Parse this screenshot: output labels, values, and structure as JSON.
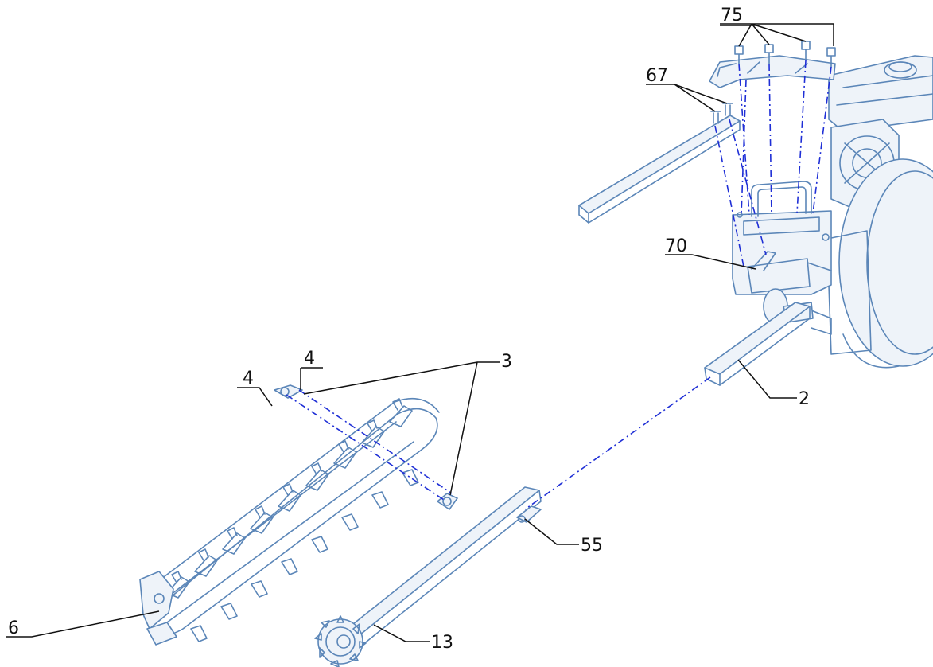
{
  "callouts": [
    {
      "id": "c75",
      "text": "75"
    },
    {
      "id": "c67",
      "text": "67"
    },
    {
      "id": "c70",
      "text": "70"
    },
    {
      "id": "c4a",
      "text": "4"
    },
    {
      "id": "c4b",
      "text": "4"
    },
    {
      "id": "c3",
      "text": "3"
    },
    {
      "id": "c2",
      "text": "2"
    },
    {
      "id": "c55",
      "text": "55"
    },
    {
      "id": "c6",
      "text": "6"
    },
    {
      "id": "c13",
      "text": "13"
    }
  ],
  "colors": {
    "part_outline": "#5b86b8",
    "assembly_line": "#1f2fd6",
    "leader": "#111111"
  }
}
